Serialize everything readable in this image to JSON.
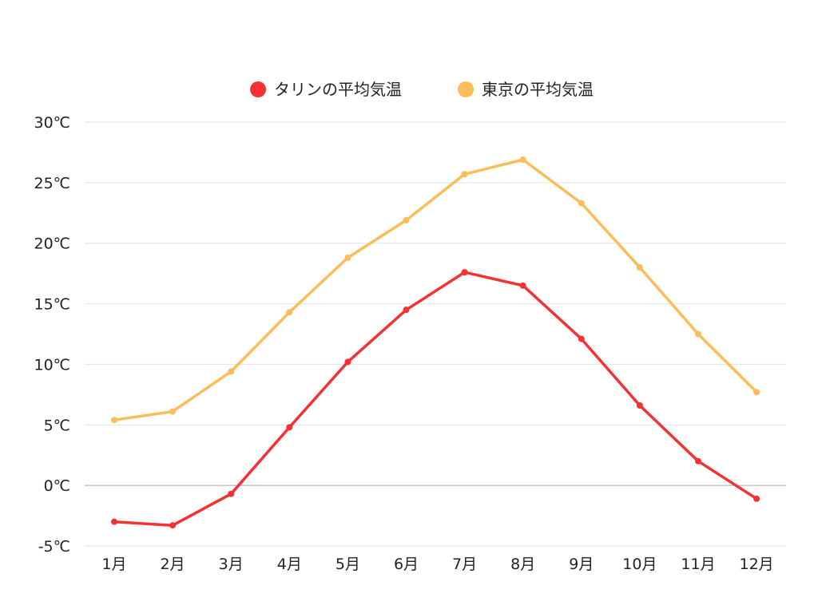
{
  "chart_data": {
    "type": "line",
    "title": "",
    "xlabel": "",
    "ylabel": "",
    "categories": [
      "1月",
      "2月",
      "3月",
      "4月",
      "5月",
      "6月",
      "7月",
      "8月",
      "9月",
      "10月",
      "11月",
      "12月"
    ],
    "ylim": [
      -5,
      30
    ],
    "yticks": [
      -5,
      0,
      5,
      10,
      15,
      20,
      25,
      30
    ],
    "ytick_labels": [
      "-5℃",
      "0℃",
      "5℃",
      "10℃",
      "15℃",
      "20℃",
      "25℃",
      "30℃"
    ],
    "grid": true,
    "legend_position": "top-center",
    "series": [
      {
        "name": "タリンの平均気温",
        "color": "#f53232",
        "values": [
          -3.0,
          -3.3,
          -0.7,
          4.8,
          10.2,
          14.5,
          17.6,
          16.5,
          12.1,
          6.6,
          2.0,
          -1.1
        ]
      },
      {
        "name": "東京の平均気温",
        "color": "#fbbd59",
        "values": [
          5.4,
          6.1,
          9.4,
          14.3,
          18.8,
          21.9,
          25.7,
          26.9,
          23.3,
          18.0,
          12.5,
          7.7
        ]
      }
    ]
  }
}
